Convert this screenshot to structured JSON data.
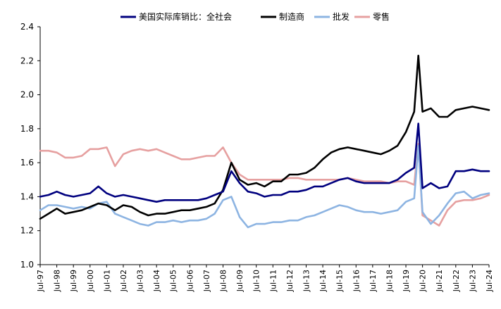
{
  "chart_data": {
    "type": "line",
    "title": "",
    "xlabel": "",
    "ylabel": "",
    "ylim": [
      1.0,
      2.4
    ],
    "yticks": [
      "1.0",
      "1.2",
      "1.4",
      "1.6",
      "1.8",
      "2.0",
      "2.2",
      "2.4"
    ],
    "xticks": [
      "Jul-97",
      "Jul-98",
      "Jul-99",
      "Jul-00",
      "Jul-01",
      "Jul-02",
      "Jul-03",
      "Jul-04",
      "Jul-05",
      "Jul-06",
      "Jul-07",
      "Jul-08",
      "Jul-09",
      "Jul-10",
      "Jul-11",
      "Jul-12",
      "Jul-13",
      "Jul-14",
      "Jul-15",
      "Jul-16",
      "Jul-17",
      "Jul-18",
      "Jul-19",
      "Jul-20",
      "Jul-21",
      "Jul-22",
      "Jul-23",
      "Jul-24"
    ],
    "grid": false,
    "legend_position": "top",
    "x": [
      "Jul-97",
      "Jan-98",
      "Jul-98",
      "Jan-99",
      "Jul-99",
      "Jan-00",
      "Jul-00",
      "Jan-01",
      "Jul-01",
      "Jan-02",
      "Jul-02",
      "Jan-03",
      "Jul-03",
      "Jan-04",
      "Jul-04",
      "Jan-05",
      "Jul-05",
      "Jan-06",
      "Jul-06",
      "Jan-07",
      "Jul-07",
      "Jan-08",
      "Jul-08",
      "Jan-09",
      "Jul-09",
      "Jan-10",
      "Jul-10",
      "Jan-11",
      "Jul-11",
      "Jan-12",
      "Jul-12",
      "Jan-13",
      "Jul-13",
      "Jan-14",
      "Jul-14",
      "Jan-15",
      "Jul-15",
      "Jan-16",
      "Jul-16",
      "Jan-17",
      "Jul-17",
      "Jan-18",
      "Jul-18",
      "Jan-19",
      "Jul-19",
      "Jan-20",
      "Apr-20",
      "Jul-20",
      "Jan-21",
      "Jul-21",
      "Jan-22",
      "Jul-22",
      "Jan-23",
      "Jul-23",
      "Jan-24",
      "Jul-24"
    ],
    "series": [
      {
        "name": "美国实际库销比：全社会",
        "color": "#00007f",
        "values": [
          1.4,
          1.41,
          1.43,
          1.41,
          1.4,
          1.41,
          1.42,
          1.46,
          1.42,
          1.4,
          1.41,
          1.4,
          1.39,
          1.38,
          1.37,
          1.38,
          1.38,
          1.38,
          1.38,
          1.38,
          1.39,
          1.41,
          1.43,
          1.55,
          1.48,
          1.43,
          1.42,
          1.4,
          1.41,
          1.41,
          1.43,
          1.43,
          1.44,
          1.46,
          1.46,
          1.48,
          1.5,
          1.51,
          1.49,
          1.48,
          1.48,
          1.48,
          1.48,
          1.5,
          1.54,
          1.57,
          1.83,
          1.45,
          1.48,
          1.45,
          1.46,
          1.55,
          1.55,
          1.56,
          1.55,
          1.55
        ]
      },
      {
        "name": "制造商",
        "color": "#000000",
        "values": [
          1.27,
          1.3,
          1.33,
          1.3,
          1.31,
          1.32,
          1.34,
          1.36,
          1.35,
          1.32,
          1.35,
          1.34,
          1.31,
          1.29,
          1.3,
          1.3,
          1.31,
          1.32,
          1.32,
          1.33,
          1.34,
          1.36,
          1.44,
          1.6,
          1.5,
          1.47,
          1.48,
          1.46,
          1.49,
          1.49,
          1.53,
          1.53,
          1.54,
          1.57,
          1.62,
          1.66,
          1.68,
          1.69,
          1.68,
          1.67,
          1.66,
          1.65,
          1.67,
          1.7,
          1.78,
          1.9,
          2.23,
          1.9,
          1.92,
          1.87,
          1.87,
          1.91,
          1.92,
          1.93,
          1.92,
          1.91
        ]
      },
      {
        "name": "批发",
        "color": "#8db4e2",
        "values": [
          1.32,
          1.35,
          1.35,
          1.34,
          1.33,
          1.34,
          1.33,
          1.36,
          1.37,
          1.3,
          1.28,
          1.26,
          1.24,
          1.23,
          1.25,
          1.25,
          1.26,
          1.25,
          1.26,
          1.26,
          1.27,
          1.3,
          1.38,
          1.4,
          1.28,
          1.22,
          1.24,
          1.24,
          1.25,
          1.25,
          1.26,
          1.26,
          1.28,
          1.29,
          1.31,
          1.33,
          1.35,
          1.34,
          1.32,
          1.31,
          1.31,
          1.3,
          1.31,
          1.32,
          1.37,
          1.39,
          1.7,
          1.31,
          1.24,
          1.29,
          1.36,
          1.42,
          1.43,
          1.39,
          1.41,
          1.42
        ]
      },
      {
        "name": "零售",
        "color": "#e6a0a0",
        "values": [
          1.67,
          1.67,
          1.66,
          1.63,
          1.63,
          1.64,
          1.68,
          1.68,
          1.69,
          1.58,
          1.65,
          1.67,
          1.68,
          1.67,
          1.68,
          1.66,
          1.64,
          1.62,
          1.62,
          1.63,
          1.64,
          1.64,
          1.69,
          1.6,
          1.53,
          1.5,
          1.5,
          1.5,
          1.5,
          1.5,
          1.51,
          1.51,
          1.5,
          1.5,
          1.5,
          1.5,
          1.5,
          1.51,
          1.5,
          1.49,
          1.49,
          1.49,
          1.48,
          1.49,
          1.49,
          1.47,
          1.71,
          1.29,
          1.26,
          1.23,
          1.32,
          1.37,
          1.38,
          1.38,
          1.39,
          1.41
        ]
      }
    ]
  }
}
